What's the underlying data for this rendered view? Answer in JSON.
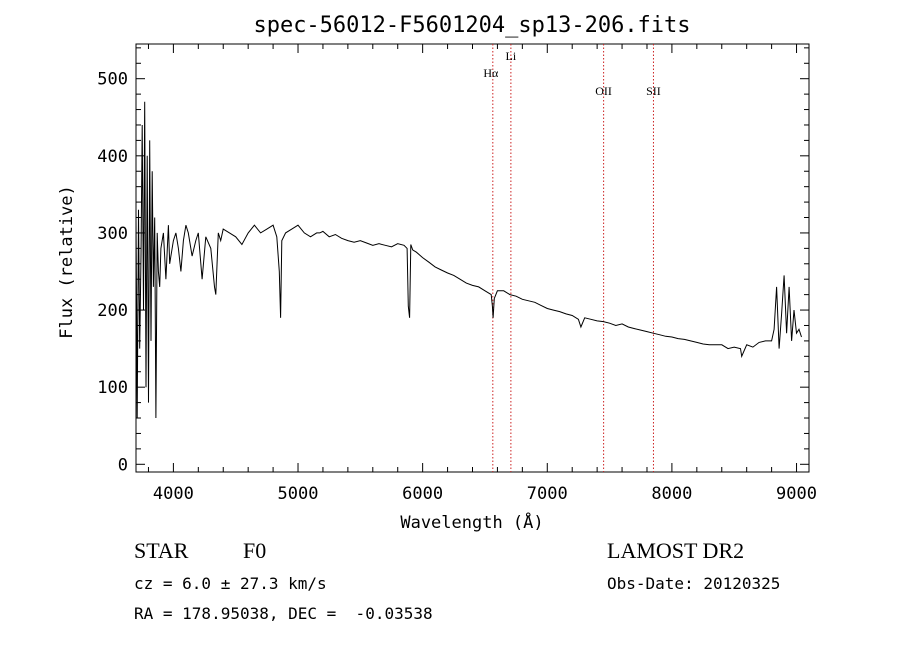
{
  "chart_data": {
    "type": "line",
    "title": "spec-56012-F5601204_sp13-206.fits",
    "xlabel": "Wavelength (Å)",
    "ylabel": "Flux (relative)",
    "xlim": [
      3700,
      9100
    ],
    "ylim": [
      -10,
      545
    ],
    "xticks": [
      4000,
      5000,
      6000,
      7000,
      8000,
      9000
    ],
    "yticks": [
      0,
      100,
      200,
      300,
      400,
      500
    ],
    "grid": false,
    "line_color": "#000000",
    "marker_color": "#cc2222",
    "series": [
      {
        "x": [
          3700,
          3710,
          3720,
          3730,
          3740,
          3750,
          3760,
          3770,
          3780,
          3790,
          3800,
          3810,
          3820,
          3830,
          3840,
          3850,
          3860,
          3870,
          3880,
          3890,
          3900,
          3920,
          3940,
          3960,
          3970,
          3980,
          4000,
          4020,
          4040,
          4060,
          4080,
          4100,
          4120,
          4150,
          4180,
          4200,
          4230,
          4260,
          4300,
          4330,
          4340,
          4360,
          4380,
          4400,
          4450,
          4500,
          4550,
          4600,
          4650,
          4700,
          4750,
          4800,
          4830,
          4850,
          4860,
          4870,
          4900,
          4950,
          5000,
          5050,
          5100,
          5150,
          5175,
          5200,
          5250,
          5300,
          5350,
          5400,
          5450,
          5500,
          5550,
          5600,
          5650,
          5700,
          5750,
          5800,
          5850,
          5875,
          5885,
          5895,
          5905,
          5920,
          5950,
          6000,
          6050,
          6100,
          6150,
          6200,
          6250,
          6300,
          6350,
          6400,
          6450,
          6500,
          6530,
          6550,
          6560,
          6565,
          6575,
          6600,
          6650,
          6700,
          6750,
          6800,
          6850,
          6900,
          6950,
          7000,
          7050,
          7100,
          7150,
          7200,
          7250,
          7270,
          7300,
          7350,
          7400,
          7450,
          7500,
          7550,
          7600,
          7650,
          7700,
          7750,
          7800,
          7850,
          7900,
          7950,
          8000,
          8050,
          8100,
          8150,
          8200,
          8250,
          8300,
          8350,
          8400,
          8450,
          8500,
          8550,
          8560,
          8600,
          8650,
          8700,
          8750,
          8800,
          8820,
          8840,
          8860,
          8880,
          8900,
          8920,
          8940,
          8960,
          8980,
          9000,
          9020,
          9040
        ],
        "y": [
          320,
          60,
          330,
          150,
          270,
          440,
          200,
          470,
          100,
          400,
          80,
          420,
          160,
          380,
          230,
          320,
          60,
          300,
          250,
          230,
          280,
          300,
          240,
          310,
          260,
          270,
          290,
          300,
          280,
          250,
          290,
          310,
          300,
          270,
          290,
          300,
          240,
          295,
          280,
          230,
          220,
          300,
          290,
          305,
          300,
          295,
          285,
          300,
          310,
          300,
          305,
          310,
          295,
          250,
          190,
          290,
          300,
          305,
          310,
          300,
          295,
          300,
          300,
          302,
          295,
          298,
          293,
          290,
          288,
          290,
          287,
          284,
          286,
          284,
          282,
          286,
          284,
          280,
          205,
          190,
          285,
          278,
          275,
          268,
          262,
          256,
          252,
          248,
          245,
          240,
          235,
          232,
          230,
          225,
          222,
          220,
          205,
          190,
          215,
          225,
          225,
          220,
          218,
          214,
          212,
          210,
          206,
          202,
          200,
          198,
          195,
          193,
          188,
          178,
          190,
          188,
          186,
          185,
          183,
          180,
          182,
          178,
          176,
          174,
          172,
          170,
          168,
          166,
          165,
          163,
          162,
          160,
          158,
          156,
          155,
          155,
          155,
          150,
          152,
          150,
          140,
          155,
          152,
          158,
          160,
          160,
          175,
          230,
          150,
          195,
          245,
          170,
          230,
          160,
          200,
          170,
          175,
          165
        ]
      }
    ],
    "annotations": [
      "Hα",
      "Li",
      "OII",
      "SII"
    ],
    "annotation_x": [
      6563,
      6708,
      7452,
      7852
    ]
  },
  "info": {
    "object_class": "STAR",
    "subclass": "F0",
    "survey": "LAMOST DR2",
    "cz": "cz = 6.0 ± 27.3 km/s",
    "obs_date": "Obs-Date: 20120325",
    "coords": "RA = 178.95038, DEC =  -0.03538"
  }
}
